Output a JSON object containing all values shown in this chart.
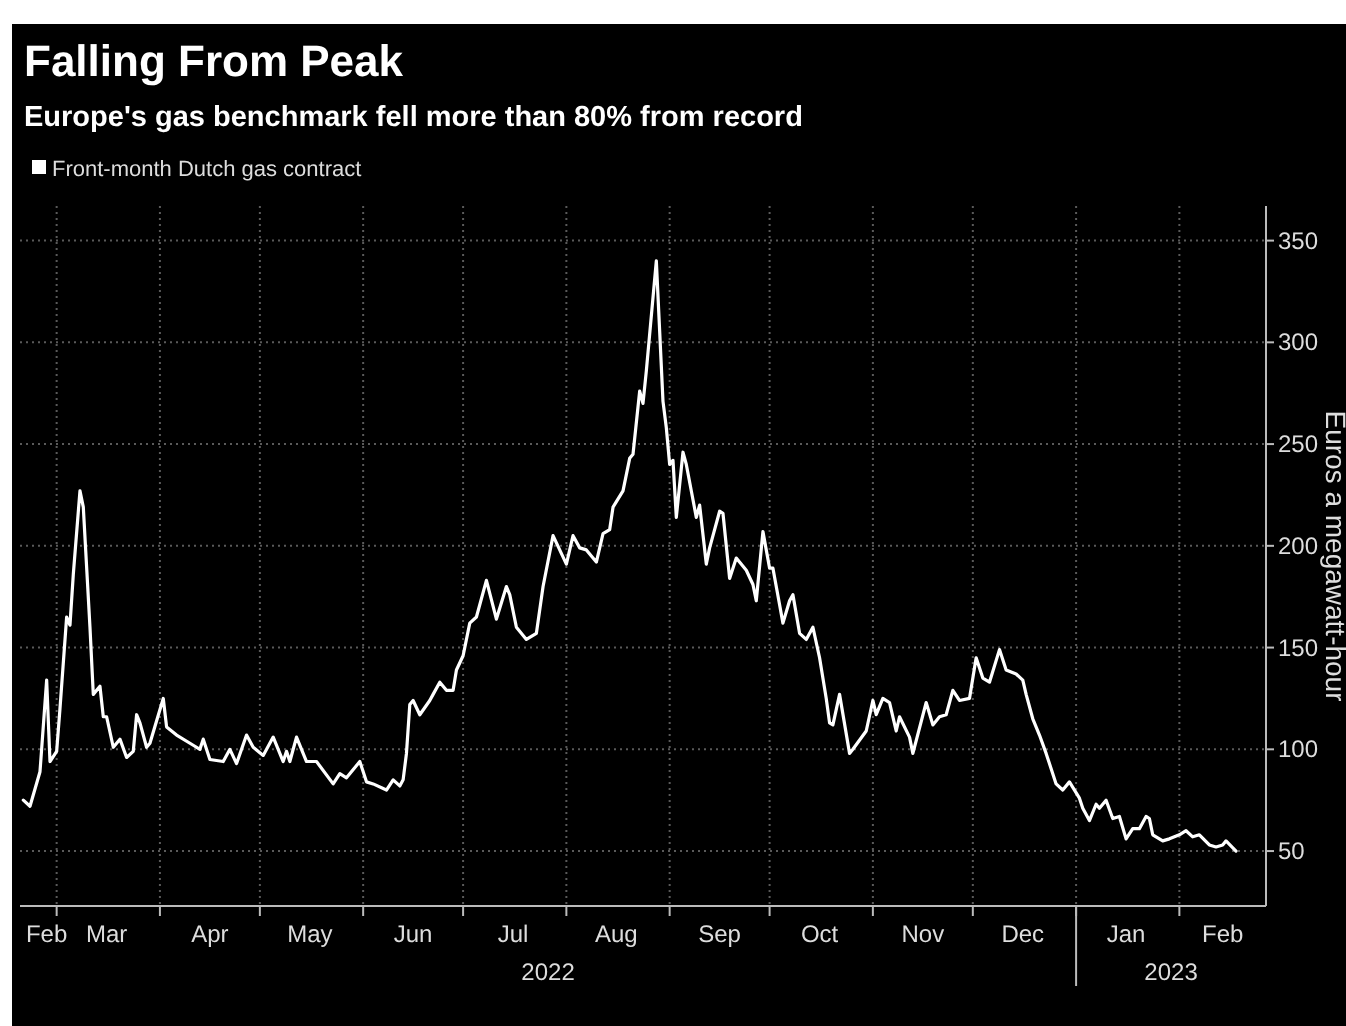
{
  "chart_data": {
    "type": "line",
    "title": "Falling From Peak",
    "subtitle": "Europe's gas benchmark fell more than 80% from record",
    "ylabel": "Euros a megawatt-hour",
    "x": [
      "2022-02-19",
      "2022-02-21",
      "2022-02-24",
      "2022-02-26",
      "2022-02-27",
      "2022-03-01",
      "2022-03-02",
      "2022-03-04",
      "2022-03-05",
      "2022-03-06",
      "2022-03-08",
      "2022-03-09",
      "2022-03-11",
      "2022-03-12",
      "2022-03-14",
      "2022-03-15",
      "2022-03-16",
      "2022-03-18",
      "2022-03-20",
      "2022-03-22",
      "2022-03-24",
      "2022-03-25",
      "2022-03-26",
      "2022-03-28",
      "2022-03-29",
      "2022-04-02",
      "2022-04-03",
      "2022-04-06",
      "2022-04-11",
      "2022-04-13",
      "2022-04-14",
      "2022-04-16",
      "2022-04-20",
      "2022-04-22",
      "2022-04-24",
      "2022-04-27",
      "2022-04-29",
      "2022-05-02",
      "2022-05-05",
      "2022-05-08",
      "2022-05-09",
      "2022-05-10",
      "2022-05-12",
      "2022-05-15",
      "2022-05-18",
      "2022-05-23",
      "2022-05-25",
      "2022-05-27",
      "2022-05-31",
      "2022-06-02",
      "2022-06-04",
      "2022-06-08",
      "2022-06-10",
      "2022-06-12",
      "2022-06-13",
      "2022-06-14",
      "2022-06-15",
      "2022-06-16",
      "2022-06-18",
      "2022-06-21",
      "2022-06-22",
      "2022-06-24",
      "2022-06-26",
      "2022-06-28",
      "2022-06-29",
      "2022-07-01",
      "2022-07-03",
      "2022-07-05",
      "2022-07-08",
      "2022-07-11",
      "2022-07-14",
      "2022-07-15",
      "2022-07-17",
      "2022-07-20",
      "2022-07-23",
      "2022-07-25",
      "2022-07-28",
      "2022-08-01",
      "2022-08-03",
      "2022-08-05",
      "2022-08-07",
      "2022-08-10",
      "2022-08-12",
      "2022-08-14",
      "2022-08-15",
      "2022-08-18",
      "2022-08-20",
      "2022-08-21",
      "2022-08-23",
      "2022-08-24",
      "2022-08-25",
      "2022-08-28",
      "2022-08-30",
      "2022-08-31",
      "2022-09-01",
      "2022-09-02",
      "2022-09-03",
      "2022-09-05",
      "2022-09-06",
      "2022-09-09",
      "2022-09-10",
      "2022-09-12",
      "2022-09-13",
      "2022-09-16",
      "2022-09-17",
      "2022-09-19",
      "2022-09-21",
      "2022-09-24",
      "2022-09-26",
      "2022-09-27",
      "2022-09-29",
      "2022-10-01",
      "2022-10-02",
      "2022-10-04",
      "2022-10-05",
      "2022-10-07",
      "2022-10-08",
      "2022-10-10",
      "2022-10-12",
      "2022-10-14",
      "2022-10-16",
      "2022-10-18",
      "2022-10-19",
      "2022-10-20",
      "2022-10-22",
      "2022-10-25",
      "2022-10-26",
      "2022-10-30",
      "2022-11-01",
      "2022-11-02",
      "2022-11-04",
      "2022-11-06",
      "2022-11-08",
      "2022-11-09",
      "2022-11-12",
      "2022-11-13",
      "2022-11-17",
      "2022-11-19",
      "2022-11-21",
      "2022-11-23",
      "2022-11-25",
      "2022-11-27",
      "2022-11-30",
      "2022-12-02",
      "2022-12-04",
      "2022-12-06",
      "2022-12-09",
      "2022-12-11",
      "2022-12-14",
      "2022-12-16",
      "2022-12-17",
      "2022-12-19",
      "2022-12-21",
      "2022-12-23",
      "2022-12-26",
      "2022-12-28",
      "2022-12-30",
      "2023-01-02",
      "2023-01-03",
      "2023-01-05",
      "2023-01-07",
      "2023-01-08",
      "2023-01-10",
      "2023-01-12",
      "2023-01-14",
      "2023-01-16",
      "2023-01-18",
      "2023-01-20",
      "2023-01-22",
      "2023-01-23",
      "2023-01-24",
      "2023-01-27",
      "2023-01-29",
      "2023-02-01",
      "2023-02-03",
      "2023-02-05",
      "2023-02-07",
      "2023-02-10",
      "2023-02-12",
      "2023-02-14",
      "2023-02-15",
      "2023-02-18"
    ],
    "series": [
      {
        "name": "Front-month Dutch gas contract",
        "color": "#ffffff",
        "values": [
          75,
          72,
          89,
          134,
          94,
          99,
          120,
          165,
          161,
          186,
          227,
          219,
          160,
          127,
          131,
          116,
          116,
          101,
          105,
          96,
          99,
          117,
          113,
          101,
          103,
          125,
          111,
          107,
          102,
          100,
          105,
          95,
          94,
          100,
          93,
          107,
          101,
          97,
          106,
          94,
          99,
          94,
          106,
          94,
          94,
          83,
          88,
          86,
          94,
          84,
          83,
          80,
          85,
          82,
          85,
          98,
          122,
          124,
          117,
          124,
          127,
          133,
          129,
          129,
          139,
          146,
          162,
          165,
          183,
          164,
          180,
          176,
          160,
          154,
          157,
          180,
          205,
          191,
          205,
          199,
          198,
          192,
          206,
          208,
          219,
          227,
          243,
          245,
          276,
          270,
          286,
          340,
          271,
          258,
          240,
          242,
          214,
          246,
          240,
          214,
          220,
          191,
          199,
          217,
          216,
          184,
          194,
          188,
          181,
          173,
          207,
          189,
          189,
          171,
          162,
          173,
          176,
          157,
          154,
          160,
          145,
          125,
          113,
          112,
          127,
          98,
          100,
          109,
          124,
          117,
          125,
          123,
          109,
          116,
          106,
          98,
          123,
          112,
          116,
          117,
          129,
          124,
          125,
          145,
          135,
          133,
          149,
          139,
          137,
          134,
          127,
          115,
          107,
          98,
          83,
          80,
          84,
          76,
          71,
          65,
          73,
          71,
          75,
          66,
          67,
          56,
          61,
          61,
          67,
          66,
          58,
          55,
          56,
          58,
          60,
          57,
          58,
          53,
          52,
          53,
          55,
          50
        ]
      }
    ],
    "xlim": [
      "2022-02-18",
      "2023-02-27"
    ],
    "xticks": [
      {
        "value": "2022-02-26",
        "label": "Feb"
      },
      {
        "value": "2022-03-01",
        "label": null
      },
      {
        "value": "2022-03-16",
        "label": "Mar"
      },
      {
        "value": "2022-04-01",
        "label": null
      },
      {
        "value": "2022-04-16",
        "label": "Apr"
      },
      {
        "value": "2022-05-01",
        "label": null
      },
      {
        "value": "2022-05-16",
        "label": "May"
      },
      {
        "value": "2022-06-01",
        "label": null
      },
      {
        "value": "2022-06-16",
        "label": "Jun"
      },
      {
        "value": "2022-07-01",
        "label": null
      },
      {
        "value": "2022-07-16",
        "label": "Jul"
      },
      {
        "value": "2022-08-01",
        "label": null
      },
      {
        "value": "2022-08-16",
        "label": "Aug"
      },
      {
        "value": "2022-09-01",
        "label": null
      },
      {
        "value": "2022-09-16",
        "label": "Sep"
      },
      {
        "value": "2022-10-01",
        "label": null
      },
      {
        "value": "2022-10-16",
        "label": "Oct"
      },
      {
        "value": "2022-11-01",
        "label": null
      },
      {
        "value": "2022-11-16",
        "label": "Nov"
      },
      {
        "value": "2022-12-01",
        "label": null
      },
      {
        "value": "2022-12-16",
        "label": "Dec"
      },
      {
        "value": "2023-01-01",
        "label": null
      },
      {
        "value": "2023-01-16",
        "label": "Jan"
      },
      {
        "value": "2023-02-01",
        "label": null
      },
      {
        "value": "2023-02-14",
        "label": "Feb"
      }
    ],
    "ylim": [
      23,
      367
    ],
    "yticks": [
      50,
      100,
      150,
      200,
      250,
      300,
      350
    ],
    "annotations": [
      "2022",
      "2023"
    ],
    "grid": true,
    "legend": "top left",
    "line_style": "solid",
    "marker": "none"
  }
}
